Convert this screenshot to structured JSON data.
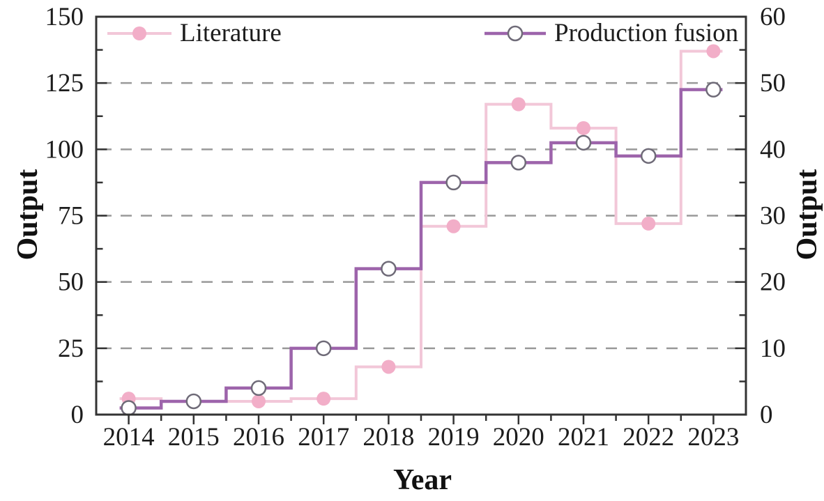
{
  "chart_data": {
    "type": "line",
    "subtype": "step-mid",
    "title": "",
    "xlabel": "Year",
    "x_categories": [
      "2014",
      "2015",
      "2016",
      "2017",
      "2018",
      "2019",
      "2020",
      "2021",
      "2022",
      "2023"
    ],
    "series": [
      {
        "name": "Literature",
        "axis": "left",
        "values": [
          6,
          5,
          5,
          6,
          18,
          71,
          117,
          108,
          72,
          137
        ],
        "line_color": "#F2C7D8",
        "line_width": 4,
        "marker": "filled-circle",
        "marker_fill": "#F2AEC8",
        "marker_radius": 10
      },
      {
        "name": "Production fusion",
        "axis": "right",
        "values": [
          1,
          2,
          4,
          10,
          22,
          35,
          38,
          41,
          39,
          49
        ],
        "line_color": "#9D64AB",
        "line_width": 4.5,
        "marker": "open-circle",
        "marker_fill": "#FFFFFF",
        "marker_edge": "#6F6B78",
        "marker_radius": 10
      }
    ],
    "y_axis_left": {
      "label": "Output",
      "min": 0,
      "max": 150,
      "major_step": 25,
      "minor_step": 12.5,
      "tick_labels": [
        "0",
        "25",
        "50",
        "75",
        "100",
        "125",
        "150"
      ]
    },
    "y_axis_right": {
      "label": "Output",
      "min": 0,
      "max": 60,
      "major_step": 10,
      "minor_step": 5,
      "tick_labels": [
        "0",
        "10",
        "20",
        "30",
        "40",
        "50",
        "60"
      ]
    },
    "grid": {
      "show": true,
      "style": "dashed",
      "color": "#999999",
      "at_left_values": [
        25,
        50,
        75,
        100,
        125
      ]
    },
    "legend": {
      "position": "top-inside",
      "entries": [
        "Literature",
        "Production fusion"
      ]
    },
    "axis_color": "#333333",
    "text_color": "#1c1c1c"
  }
}
